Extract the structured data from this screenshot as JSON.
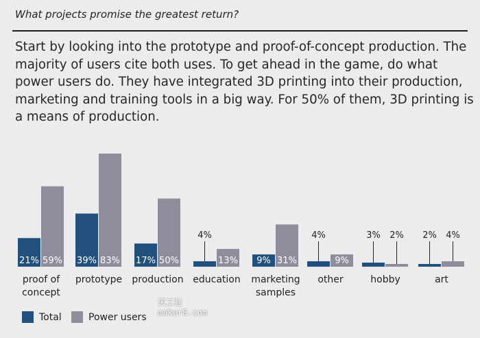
{
  "heading": "What projects promise the greatest return?",
  "intro": "Start by looking into the prototype and proof-of-concept production. The majority of users cite both uses. To get ahead in the game, do what power users do. They have integrated 3D printing into their production, marketing and training tools in a big way. For 50% of them, 3D printing is a means of production.",
  "chart_data": {
    "type": "bar",
    "title": "",
    "xlabel": "",
    "ylabel": "",
    "ylim": [
      0,
      83
    ],
    "grid": false,
    "legend": "bottom-left",
    "categories": [
      [
        "proof of",
        "concept"
      ],
      [
        "prototype"
      ],
      [
        "production"
      ],
      [
        "education"
      ],
      [
        "marketing",
        "samples"
      ],
      [
        "other"
      ],
      [
        "hobby"
      ],
      [
        "art"
      ]
    ],
    "series": [
      {
        "name": "Total",
        "color": "#22507c",
        "values": [
          21,
          39,
          17,
          4,
          9,
          4,
          3,
          2
        ],
        "labels": [
          "21%",
          "39%",
          "17%",
          "4%",
          "9%",
          "4%",
          "3%",
          "2%"
        ]
      },
      {
        "name": "Power users",
        "color": "#8f8c9c",
        "values": [
          59,
          83,
          50,
          13,
          31,
          9,
          2,
          4
        ],
        "labels": [
          "59%",
          "83%",
          "50%",
          "13%",
          "31%",
          "9%",
          "2%",
          "4%"
        ]
      }
    ]
  },
  "legend": {
    "total_label": "Total",
    "power_label": "Power users"
  },
  "watermark": {
    "line1": "天工社",
    "line2": "maker8.com"
  }
}
